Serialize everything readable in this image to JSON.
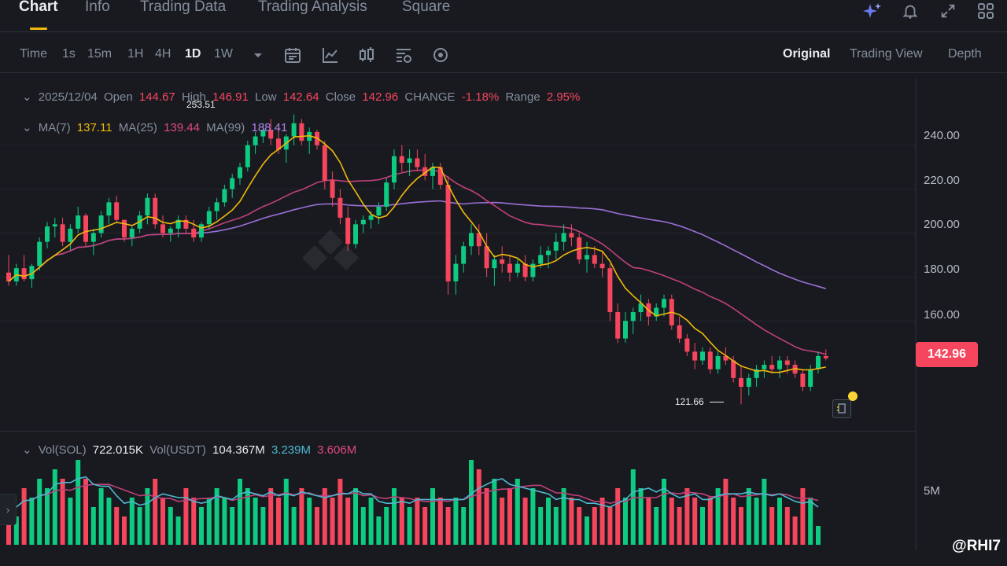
{
  "nav": {
    "tabs": [
      "Chart",
      "Info",
      "Trading Data",
      "Trading Analysis",
      "Square"
    ],
    "active": "Chart"
  },
  "toolbar": {
    "timeframes": [
      "Time",
      "1s",
      "15m",
      "1H",
      "4H",
      "1D",
      "1W"
    ],
    "active_timeframe": "1D",
    "views": [
      "Original",
      "Trading View",
      "Depth"
    ],
    "active_view": "Original"
  },
  "ohlc": {
    "date": "2025/12/04",
    "open_label": "Open",
    "open": "144.67",
    "high_label": "High",
    "high": "146.91",
    "low_label": "Low",
    "low": "142.64",
    "close_label": "Close",
    "close": "142.96",
    "change_label": "CHANGE",
    "change": "-1.18%",
    "range_label": "Range",
    "range": "2.95%"
  },
  "ma": {
    "ma7_label": "MA(7)",
    "ma7": "137.11",
    "ma25_label": "MA(25)",
    "ma25": "139.44",
    "ma99_label": "MA(99)",
    "ma99": "188.41"
  },
  "volume": {
    "vol_sol_label": "Vol(SOL)",
    "vol_sol": "722.015K",
    "vol_usdt_label": "Vol(USDT)",
    "vol_usdt": "104.367M",
    "ma1": "3.239M",
    "ma2": "3.606M"
  },
  "price_axis": [
    "240.00",
    "220.00",
    "200.00",
    "180.00",
    "160.00"
  ],
  "volume_axis": "5M",
  "current_price": "142.96",
  "annotations": {
    "high_marker": "253.51",
    "low_marker": "121.66"
  },
  "watermark": "@RHI7",
  "colors": {
    "up": "#0ecb81",
    "down": "#f6465d",
    "ma7": "#f0b90b",
    "ma25": "#c0407a",
    "ma99": "#9b6fd6",
    "accent": "#f0b90b"
  },
  "chart_data": {
    "type": "candlestick",
    "price_ylim": [
      120,
      256
    ],
    "candles": [
      [
        182,
        190,
        176,
        178
      ],
      [
        178,
        186,
        176,
        184
      ],
      [
        184,
        190,
        178,
        179
      ],
      [
        179,
        186,
        175,
        185
      ],
      [
        185,
        198,
        183,
        196
      ],
      [
        196,
        205,
        193,
        203
      ],
      [
        203,
        207,
        198,
        204
      ],
      [
        204,
        207,
        194,
        196
      ],
      [
        196,
        204,
        192,
        202
      ],
      [
        202,
        212,
        200,
        208
      ],
      [
        208,
        209,
        194,
        196
      ],
      [
        196,
        202,
        190,
        200
      ],
      [
        200,
        210,
        198,
        208
      ],
      [
        208,
        216,
        204,
        214
      ],
      [
        214,
        217,
        205,
        206
      ],
      [
        206,
        206,
        196,
        198
      ],
      [
        198,
        203,
        194,
        202
      ],
      [
        202,
        210,
        200,
        208
      ],
      [
        208,
        218,
        204,
        216
      ],
      [
        216,
        218,
        202,
        204
      ],
      [
        204,
        208,
        198,
        200
      ],
      [
        200,
        203,
        196,
        202
      ],
      [
        202,
        208,
        198,
        206
      ],
      [
        206,
        208,
        200,
        202
      ],
      [
        202,
        206,
        196,
        198
      ],
      [
        198,
        205,
        196,
        204
      ],
      [
        204,
        212,
        202,
        210
      ],
      [
        210,
        216,
        206,
        214
      ],
      [
        214,
        222,
        212,
        220
      ],
      [
        220,
        227,
        216,
        225
      ],
      [
        225,
        232,
        222,
        230
      ],
      [
        230,
        242,
        228,
        240
      ],
      [
        240,
        246,
        236,
        244
      ],
      [
        244,
        250,
        241,
        247
      ],
      [
        247,
        252,
        240,
        243
      ],
      [
        243,
        248,
        236,
        238
      ],
      [
        238,
        245,
        232,
        244
      ],
      [
        244,
        254,
        240,
        250
      ],
      [
        250,
        252,
        240,
        242
      ],
      [
        242,
        248,
        236,
        246
      ],
      [
        246,
        247,
        238,
        240
      ],
      [
        240,
        242,
        220,
        224
      ],
      [
        224,
        228,
        212,
        216
      ],
      [
        216,
        220,
        204,
        207
      ],
      [
        207,
        212,
        192,
        195
      ],
      [
        195,
        206,
        193,
        204
      ],
      [
        204,
        208,
        200,
        206
      ],
      [
        206,
        210,
        202,
        208
      ],
      [
        208,
        214,
        204,
        212
      ],
      [
        212,
        225,
        210,
        223
      ],
      [
        223,
        238,
        220,
        235
      ],
      [
        235,
        240,
        228,
        232
      ],
      [
        232,
        238,
        226,
        234
      ],
      [
        234,
        238,
        228,
        230
      ],
      [
        230,
        236,
        224,
        226
      ],
      [
        226,
        232,
        220,
        230
      ],
      [
        230,
        232,
        220,
        222
      ],
      [
        222,
        226,
        172,
        178
      ],
      [
        178,
        190,
        172,
        186
      ],
      [
        186,
        196,
        182,
        194
      ],
      [
        194,
        204,
        190,
        200
      ],
      [
        200,
        204,
        190,
        194
      ],
      [
        194,
        200,
        180,
        184
      ],
      [
        184,
        190,
        176,
        188
      ],
      [
        188,
        194,
        182,
        186
      ],
      [
        186,
        190,
        178,
        182
      ],
      [
        182,
        188,
        180,
        186
      ],
      [
        186,
        190,
        178,
        180
      ],
      [
        180,
        188,
        178,
        186
      ],
      [
        186,
        194,
        184,
        190
      ],
      [
        190,
        194,
        184,
        192
      ],
      [
        192,
        200,
        188,
        196
      ],
      [
        196,
        204,
        192,
        200
      ],
      [
        200,
        204,
        194,
        198
      ],
      [
        198,
        200,
        186,
        188
      ],
      [
        188,
        196,
        182,
        190
      ],
      [
        190,
        194,
        184,
        186
      ],
      [
        186,
        192,
        180,
        184
      ],
      [
        184,
        186,
        160,
        164
      ],
      [
        164,
        168,
        150,
        152
      ],
      [
        152,
        164,
        150,
        160
      ],
      [
        160,
        166,
        154,
        164
      ],
      [
        164,
        172,
        160,
        168
      ],
      [
        168,
        170,
        158,
        162
      ],
      [
        162,
        168,
        160,
        166
      ],
      [
        166,
        172,
        162,
        170
      ],
      [
        170,
        172,
        156,
        158
      ],
      [
        158,
        162,
        150,
        152
      ],
      [
        152,
        154,
        144,
        146
      ],
      [
        146,
        150,
        138,
        142
      ],
      [
        142,
        148,
        140,
        146
      ],
      [
        146,
        148,
        136,
        138
      ],
      [
        138,
        146,
        136,
        144
      ],
      [
        144,
        148,
        140,
        142
      ],
      [
        142,
        144,
        132,
        134
      ],
      [
        134,
        140,
        122,
        130
      ],
      [
        130,
        136,
        126,
        134
      ],
      [
        134,
        140,
        130,
        138
      ],
      [
        138,
        142,
        134,
        140
      ],
      [
        140,
        144,
        136,
        138
      ],
      [
        138,
        144,
        134,
        142
      ],
      [
        142,
        144,
        136,
        140
      ],
      [
        140,
        142,
        134,
        136
      ],
      [
        136,
        138,
        128,
        130
      ],
      [
        130,
        140,
        128,
        138
      ],
      [
        138,
        146,
        136,
        144
      ],
      [
        144,
        147,
        142,
        143
      ]
    ],
    "volumes": [
      5,
      3,
      6,
      5,
      7,
      6,
      8,
      7,
      5,
      9,
      7,
      4,
      6,
      5,
      4,
      3,
      5,
      4,
      6,
      7,
      5,
      4,
      3,
      6,
      5,
      4,
      5,
      6,
      5,
      4,
      7,
      6,
      5,
      4,
      6,
      5,
      7,
      4,
      6,
      5,
      4,
      6,
      5,
      7,
      5,
      6,
      4,
      5,
      3,
      4,
      6,
      5,
      4,
      5,
      4,
      6,
      5,
      4,
      5,
      4,
      9,
      8,
      6,
      7,
      5,
      6,
      7,
      5,
      6,
      4,
      5,
      4,
      6,
      5,
      4,
      3,
      4,
      5,
      4,
      6,
      5,
      8,
      6,
      5,
      4,
      7,
      5,
      4,
      6,
      5,
      4,
      5,
      6,
      7,
      5,
      4,
      6,
      5,
      7,
      4,
      5,
      4,
      3,
      6,
      5,
      2
    ]
  }
}
